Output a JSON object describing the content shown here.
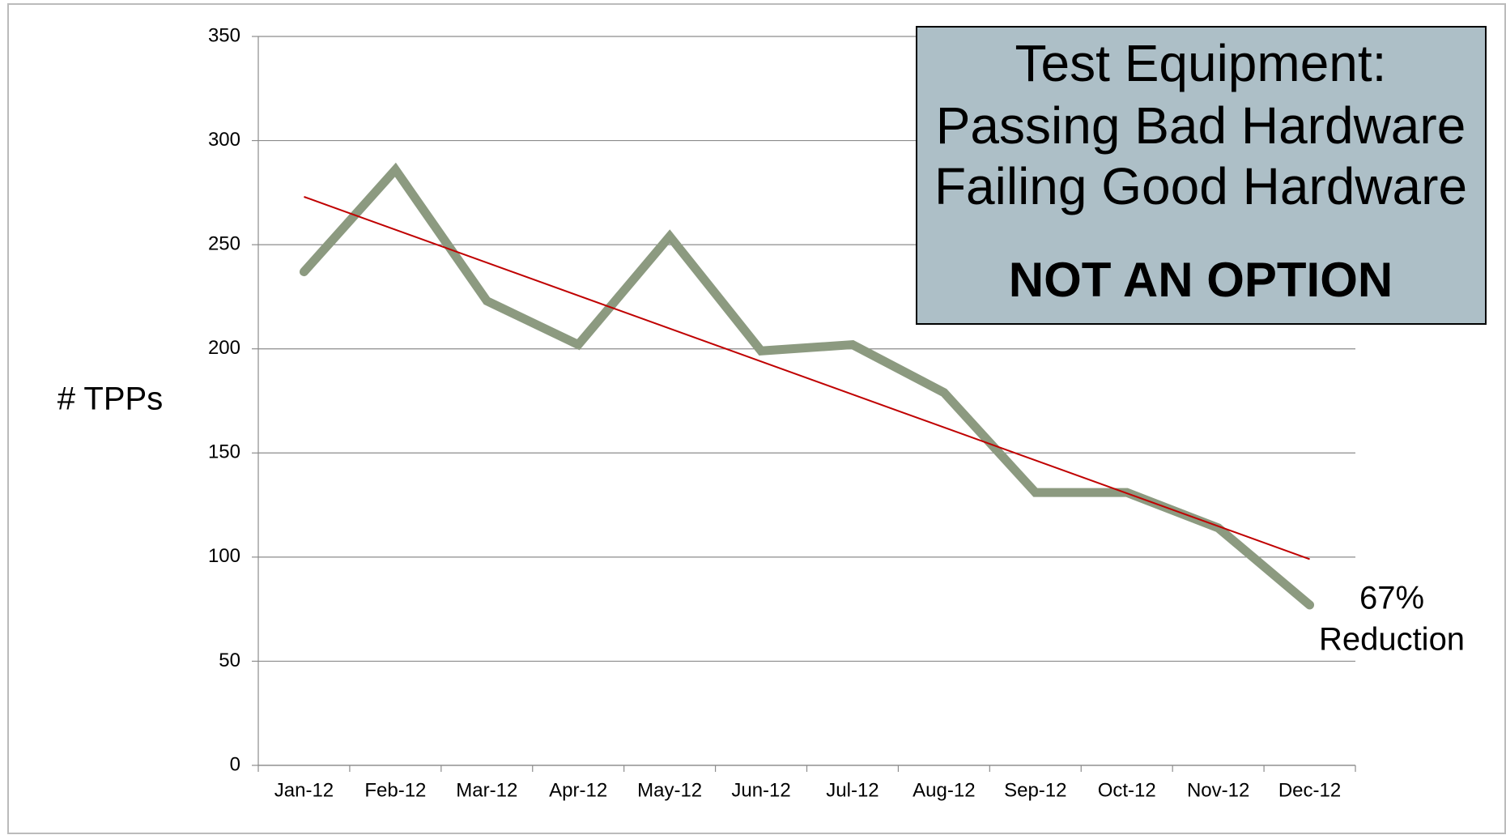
{
  "chart_data": {
    "type": "line",
    "y_label": "# TPPs",
    "categories": [
      "Jan-12",
      "Feb-12",
      "Mar-12",
      "Apr-12",
      "May-12",
      "Jun-12",
      "Jul-12",
      "Aug-12",
      "Sep-12",
      "Oct-12",
      "Nov-12",
      "Dec-12"
    ],
    "series": [
      {
        "color": "#8c9a80",
        "values": [
          237,
          286,
          223,
          202,
          254,
          199,
          202,
          179,
          131,
          131,
          114,
          77
        ]
      }
    ],
    "trendline": {
      "color": "#c00000",
      "start": 273,
      "end": 99
    },
    "ylim": [
      0,
      350
    ],
    "yticks": [
      0,
      50,
      100,
      150,
      200,
      250,
      300,
      350
    ],
    "grid": true,
    "annotation_box": {
      "lines": [
        "Test Equipment:",
        "Passing Bad Hardware",
        "Failing Good Hardware"
      ],
      "emphasis": "NOT AN OPTION"
    },
    "annotation": [
      "67%",
      "Reduction"
    ]
  }
}
